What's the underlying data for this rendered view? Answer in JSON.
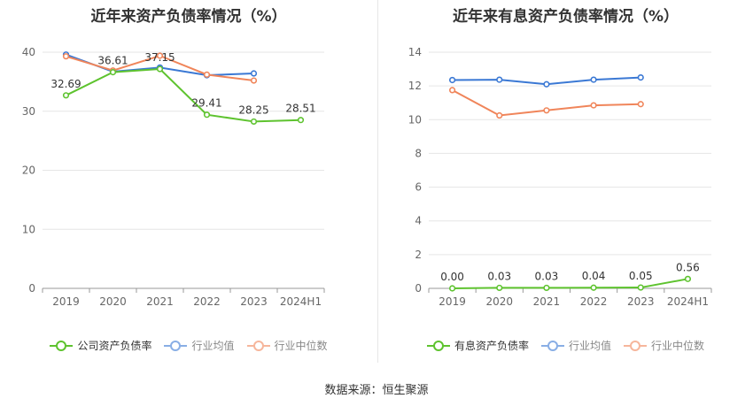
{
  "source_text": "数据来源：恒生聚源",
  "chart_data": [
    {
      "type": "line",
      "title": "近年来资产负债率情况（%）",
      "categories": [
        "2019",
        "2020",
        "2021",
        "2022",
        "2023",
        "2024H1"
      ],
      "ylim": [
        0,
        40
      ],
      "yticks": [
        0,
        10,
        20,
        30,
        40
      ],
      "legend_position": "bottom",
      "series": [
        {
          "name": "公司资产负债率",
          "color": "#5ec32f",
          "values": [
            32.69,
            36.61,
            37.15,
            29.41,
            28.25,
            28.51
          ],
          "labels": [
            "32.69",
            "36.61",
            "37.15",
            "29.41",
            "28.25",
            "28.51"
          ]
        },
        {
          "name": "行业均值",
          "color": "#3a78d4",
          "values": [
            39.6,
            36.7,
            37.4,
            36.1,
            36.4,
            null
          ]
        },
        {
          "name": "行业中位数",
          "color": "#f0855a",
          "values": [
            39.3,
            36.9,
            39.4,
            36.2,
            35.2,
            null
          ]
        }
      ]
    },
    {
      "type": "line",
      "title": "近年来有息资产负债率情况（%）",
      "categories": [
        "2019",
        "2020",
        "2021",
        "2022",
        "2023",
        "2024H1"
      ],
      "ylim": [
        0,
        14
      ],
      "yticks": [
        0,
        2,
        4,
        6,
        8,
        10,
        12,
        14
      ],
      "legend_position": "bottom",
      "series": [
        {
          "name": "有息资产负债率",
          "color": "#5ec32f",
          "values": [
            0.0,
            0.03,
            0.03,
            0.04,
            0.05,
            0.56
          ],
          "labels": [
            "0.00",
            "0.03",
            "0.03",
            "0.04",
            "0.05",
            "0.56"
          ]
        },
        {
          "name": "行业均值",
          "color": "#3a78d4",
          "values": [
            12.35,
            12.37,
            12.1,
            12.37,
            12.5,
            null
          ]
        },
        {
          "name": "行业中位数",
          "color": "#f0855a",
          "values": [
            11.75,
            10.25,
            10.55,
            10.85,
            10.92,
            null
          ]
        }
      ]
    }
  ]
}
